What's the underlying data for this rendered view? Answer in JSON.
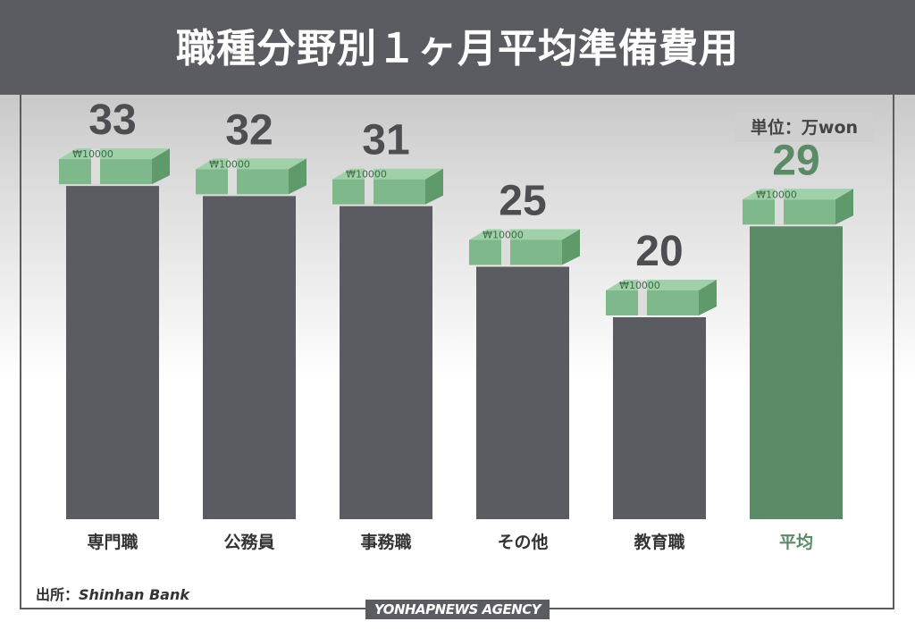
{
  "title": "職種分野別１ヶ月平均準備費用",
  "unit_label": "単位：万won",
  "source": {
    "label": "出所：",
    "name": "Shinhan Bank"
  },
  "logo": "YONHAPNEWS AGENCY",
  "money_label": "₩10000",
  "colors": {
    "bar": "#5b5b62",
    "highlight": "#5a8a66",
    "box": "#7fb88a",
    "band": "#dcdcdc"
  },
  "chart_data": {
    "type": "bar",
    "title": "職種分野別１ヶ月平均準備費用",
    "unit": "万won",
    "categories": [
      "専門職",
      "公務員",
      "事務職",
      "その他",
      "教育職",
      "平均"
    ],
    "values": [
      33,
      32,
      31,
      25,
      20,
      29
    ],
    "highlight": "平均",
    "ylim": [
      0,
      40
    ],
    "grid": false,
    "legend": "none"
  }
}
